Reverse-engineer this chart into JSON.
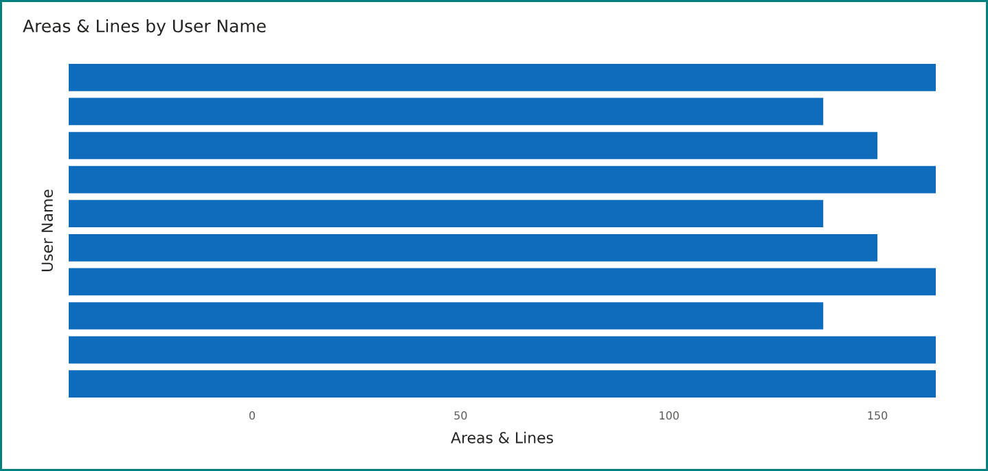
{
  "chart_data": {
    "type": "bar",
    "orientation": "horizontal",
    "title": "Areas & Lines by User Name",
    "xlabel": "Areas & Lines",
    "ylabel": "User Name",
    "categories": [
      null,
      null,
      null,
      null,
      null,
      null,
      null,
      null,
      null,
      null
    ],
    "base": [
      -44,
      -44,
      -44,
      -44,
      -44,
      -44,
      -44,
      -44,
      -44,
      -44
    ],
    "values": [
      208,
      181,
      194,
      208,
      181,
      194,
      208,
      181,
      208,
      208
    ],
    "color": "#0f6cbd",
    "xlim": [
      -44,
      164
    ],
    "xticks": [
      0,
      50,
      100,
      150
    ]
  }
}
